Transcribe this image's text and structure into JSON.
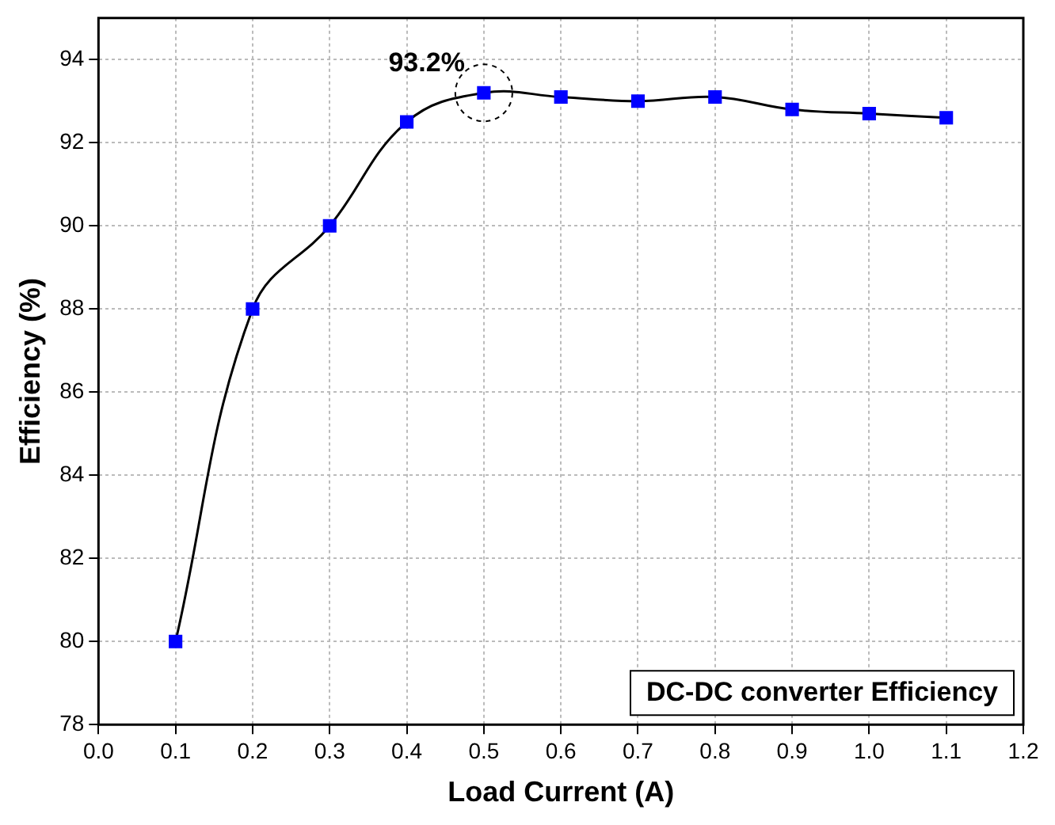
{
  "chart_data": {
    "type": "line",
    "xlabel": "Load Current (A)",
    "ylabel": "Efficiency (%)",
    "x": [
      0.1,
      0.2,
      0.3,
      0.4,
      0.5,
      0.6,
      0.7,
      0.8,
      0.9,
      1.0,
      1.1
    ],
    "series": [
      {
        "color": "#0000ff",
        "values": [
          80,
          88,
          90,
          92.5,
          93.2,
          93.1,
          93.0,
          93.1,
          92.8,
          92.7,
          92.6
        ]
      }
    ],
    "xlim": [
      0,
      1.2
    ],
    "xticks": [
      {
        "value": 0,
        "label": "0.0"
      },
      0.1,
      0.2,
      0.3,
      0.4,
      0.5,
      0.6,
      0.7,
      0.8,
      0.9,
      {
        "value": 1,
        "label": "1.0"
      },
      1.1,
      1.2
    ],
    "ylim": [
      78,
      95
    ],
    "yticks": [
      78,
      80,
      82,
      84,
      86,
      88,
      90,
      92,
      94
    ],
    "grid": true,
    "legend": false,
    "marker": "square",
    "line_style": "solid",
    "annotations": [
      {
        "text": "93.2%",
        "x": 0.5,
        "y": 93.2
      },
      "DC-DC converter Efficiency"
    ]
  }
}
